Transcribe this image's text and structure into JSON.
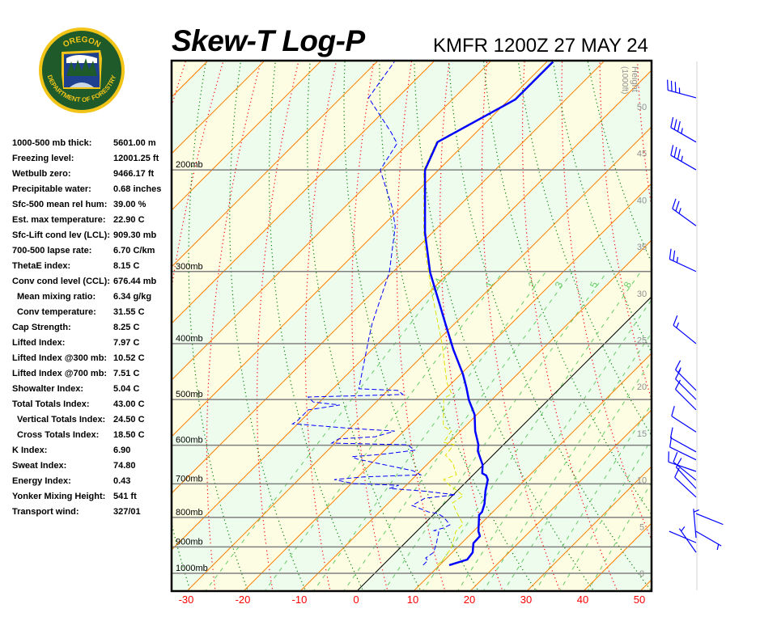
{
  "header": {
    "title": "Skew-T Log-P",
    "station_time": "KMFR 1200Z 27 MAY 24"
  },
  "logo": {
    "top_text": "OREGON",
    "bottom_text": "DEPARTMENT OF FORESTRY",
    "colors": {
      "ring": "#f2c418",
      "field": "#1e5a2a",
      "sky": "#ffffff",
      "water": "#1f3f8f"
    }
  },
  "stats": [
    {
      "label": "1000-500 mb thick:",
      "value": "5601.00 m"
    },
    {
      "label": "Freezing level:",
      "value": "12001.25 ft"
    },
    {
      "label": "Wetbulb zero:",
      "value": "9466.17 ft"
    },
    {
      "label": "Precipitable water:",
      "value": "0.68 inches"
    },
    {
      "label": "Sfc-500 mean rel hum:",
      "value": "39.00 %"
    },
    {
      "label": "Est. max temperature:",
      "value": "22.90 C"
    },
    {
      "label": "Sfc-Lift cond lev (LCL):",
      "value": "909.30 mb"
    },
    {
      "label": "700-500 lapse rate:",
      "value": "6.70 C/km"
    },
    {
      "label": "ThetaE index:",
      "value": "8.15 C"
    },
    {
      "label": "Conv cond level (CCL):",
      "value": "676.44 mb"
    },
    {
      "label": "Mean mixing ratio:",
      "value": "6.34 g/kg",
      "sub": true
    },
    {
      "label": "Conv temperature:",
      "value": "31.55 C",
      "sub": true
    },
    {
      "label": "Cap Strength:",
      "value": "8.25 C"
    },
    {
      "label": "Lifted Index:",
      "value": "7.97 C"
    },
    {
      "label": "Lifted Index @300 mb:",
      "value": "10.52 C"
    },
    {
      "label": "Lifted Index @700 mb:",
      "value": "7.51 C"
    },
    {
      "label": "Showalter Index:",
      "value": "5.04 C"
    },
    {
      "label": "Total Totals Index:",
      "value": "43.00 C"
    },
    {
      "label": "Vertical Totals Index:",
      "value": "24.50 C",
      "sub": true
    },
    {
      "label": "Cross Totals Index:",
      "value": "18.50 C",
      "sub": true
    },
    {
      "label": "K Index:",
      "value": "6.90"
    },
    {
      "label": "Sweat Index:",
      "value": "74.80"
    },
    {
      "label": "Energy Index:",
      "value": "0.43"
    },
    {
      "label": "Yonker Mixing Height:",
      "value": "541 ft"
    },
    {
      "label": "Transport wind:",
      "value": "327/01"
    }
  ],
  "chart_data": {
    "type": "skew-t",
    "x_axis": {
      "ticks": [
        -30,
        -20,
        -10,
        0,
        10,
        20,
        30,
        40,
        50
      ],
      "color": "#ff0000"
    },
    "pressure_levels": [
      {
        "p": 1000,
        "label": "1000mb"
      },
      {
        "p": 900,
        "label": "900mb"
      },
      {
        "p": 800,
        "label": "800mb"
      },
      {
        "p": 700,
        "label": "700mb"
      },
      {
        "p": 600,
        "label": "600mb"
      },
      {
        "p": 500,
        "label": "500mb"
      },
      {
        "p": 400,
        "label": "400mb"
      },
      {
        "p": 300,
        "label": "300mb"
      },
      {
        "p": 200,
        "label": "200mb"
      }
    ],
    "pressure_range_mb": [
      1070,
      130
    ],
    "height_axis": {
      "title": "Height",
      "units": "(1000ft)",
      "ticks": [
        0,
        5,
        10,
        15,
        20,
        25,
        30,
        35,
        40,
        45,
        50
      ]
    },
    "mixing_ratio_labels": [
      "0.4",
      "1",
      "2",
      "3",
      "5",
      "8"
    ],
    "mixing_ratio_lines_gkg": [
      0.4,
      1,
      2,
      3,
      5,
      8,
      12,
      16,
      20,
      28,
      36,
      48
    ],
    "temperature": [
      [
        968,
        11.7
      ],
      [
        947,
        13.9
      ],
      [
        920,
        13.6
      ],
      [
        887,
        12.1
      ],
      [
        862,
        12.0
      ],
      [
        846,
        10.9
      ],
      [
        792,
        8.1
      ],
      [
        783,
        8.1
      ],
      [
        758,
        7.1
      ],
      [
        720,
        5.0
      ],
      [
        688,
        3.4
      ],
      [
        677,
        2.4
      ],
      [
        671,
        1.3
      ],
      [
        649,
        -0.1
      ],
      [
        614,
        -3.4
      ],
      [
        599,
        -4.4
      ],
      [
        567,
        -7.4
      ],
      [
        531,
        -10.4
      ],
      [
        501,
        -14.0
      ],
      [
        477,
        -16.6
      ],
      [
        452,
        -19.6
      ],
      [
        410,
        -25.6
      ],
      [
        369,
        -31.7
      ],
      [
        301,
        -43.4
      ],
      [
        257,
        -51.3
      ],
      [
        200,
        -62.4
      ],
      [
        179,
        -65.1
      ],
      [
        151,
        -58.9
      ],
      [
        130,
        -58.9
      ]
    ],
    "dewpoint": [
      [
        968,
        7.1
      ],
      [
        950,
        7.1
      ],
      [
        941,
        6.3
      ],
      [
        920,
        6.7
      ],
      [
        890,
        5.7
      ],
      [
        848,
        4.0
      ],
      [
        843,
        2.9
      ],
      [
        835,
        4.1
      ],
      [
        824,
        4.7
      ],
      [
        800,
        2.3
      ],
      [
        788,
        0.6
      ],
      [
        783,
        -1.3
      ],
      [
        763,
        -5.4
      ],
      [
        741,
        -4.4
      ],
      [
        731,
        0.4
      ],
      [
        720,
        -6.1
      ],
      [
        713,
        -12.4
      ],
      [
        704,
        -11.3
      ],
      [
        699,
        -19.6
      ],
      [
        688,
        -23.7
      ],
      [
        681,
        -19.1
      ],
      [
        675,
        -9.3
      ],
      [
        664,
        -11.4
      ],
      [
        634,
        -23.3
      ],
      [
        628,
        -24.6
      ],
      [
        622,
        -19.7
      ],
      [
        612,
        -14.7
      ],
      [
        599,
        -16.9
      ],
      [
        595,
        -30.6
      ],
      [
        585,
        -30.1
      ],
      [
        580,
        -24.0
      ],
      [
        567,
        -21.6
      ],
      [
        561,
        -29.9
      ],
      [
        552,
        -39.3
      ],
      [
        551,
        -40.9
      ],
      [
        544,
        -40.6
      ],
      [
        521,
        -40.6
      ],
      [
        511,
        -35.9
      ],
      [
        505,
        -41.1
      ],
      [
        495,
        -42.9
      ],
      [
        490,
        -26.6
      ],
      [
        482,
        -28.3
      ],
      [
        479,
        -35.4
      ],
      [
        467,
        -36.3
      ],
      [
        390,
        -42.7
      ],
      [
        369,
        -44.6
      ],
      [
        301,
        -50.6
      ],
      [
        251,
        -57.6
      ],
      [
        233,
        -61.4
      ],
      [
        200,
        -70.3
      ],
      [
        180,
        -72.0
      ],
      [
        172,
        -75.1
      ],
      [
        150,
        -85.1
      ],
      [
        130,
        -86.9
      ]
    ],
    "wetbulb": [
      [
        968,
        9.6
      ],
      [
        950,
        9.7
      ],
      [
        902,
        9.0
      ],
      [
        846,
        6.9
      ],
      [
        822,
        6.9
      ],
      [
        783,
        3.6
      ],
      [
        755,
        1.3
      ],
      [
        734,
        1.9
      ],
      [
        720,
        0.1
      ],
      [
        704,
        -2.3
      ],
      [
        688,
        -4.4
      ],
      [
        675,
        -3.0
      ],
      [
        645,
        -5.6
      ],
      [
        624,
        -8.4
      ],
      [
        599,
        -8.7
      ],
      [
        593,
        -11.0
      ],
      [
        567,
        -11.6
      ],
      [
        556,
        -13.9
      ],
      [
        498,
        -18.7
      ],
      [
        489,
        -18.1
      ],
      [
        467,
        -21.0
      ],
      [
        403,
        -28.3
      ],
      [
        369,
        -33.0
      ],
      [
        324,
        -39.9
      ],
      [
        276,
        -48.1
      ],
      [
        257,
        -51.5
      ],
      [
        200,
        -62.6
      ],
      [
        179,
        -65.3
      ],
      [
        151,
        -59.1
      ],
      [
        130,
        -59.1
      ]
    ],
    "winds_p_dir_kt": [
      [
        150,
        255,
        35
      ],
      [
        179,
        240,
        35
      ],
      [
        200,
        240,
        35
      ],
      [
        250,
        234,
        25
      ],
      [
        300,
        245,
        25
      ],
      [
        400,
        231,
        15
      ],
      [
        482,
        225,
        15
      ],
      [
        500,
        225,
        10
      ],
      [
        521,
        225,
        10
      ],
      [
        569,
        237,
        10
      ],
      [
        616,
        241,
        10
      ],
      [
        636,
        244,
        10
      ],
      [
        666,
        251,
        10
      ],
      [
        690,
        231,
        10
      ],
      [
        713,
        223,
        10
      ],
      [
        738,
        227,
        10
      ],
      [
        788,
        68,
        3
      ],
      [
        846,
        60,
        5
      ],
      [
        868,
        185,
        5
      ],
      [
        885,
        247,
        3
      ],
      [
        920,
        215,
        5
      ]
    ],
    "colors": {
      "temperature": "#0000ff",
      "dewpoint": "#0000ff",
      "wetbulb": "#e0e000",
      "isotherm": "#ff8000",
      "zero_isotherm": "#000000",
      "dry_adiabat": "#ff0000",
      "moist_adiabat": "#008000",
      "mixing_ratio": "#66cc66",
      "isobar": "#808080",
      "band_a": "#fdfde4",
      "band_b": "#eefcee",
      "height_label": "#909090",
      "wind": "#0000ff"
    }
  }
}
